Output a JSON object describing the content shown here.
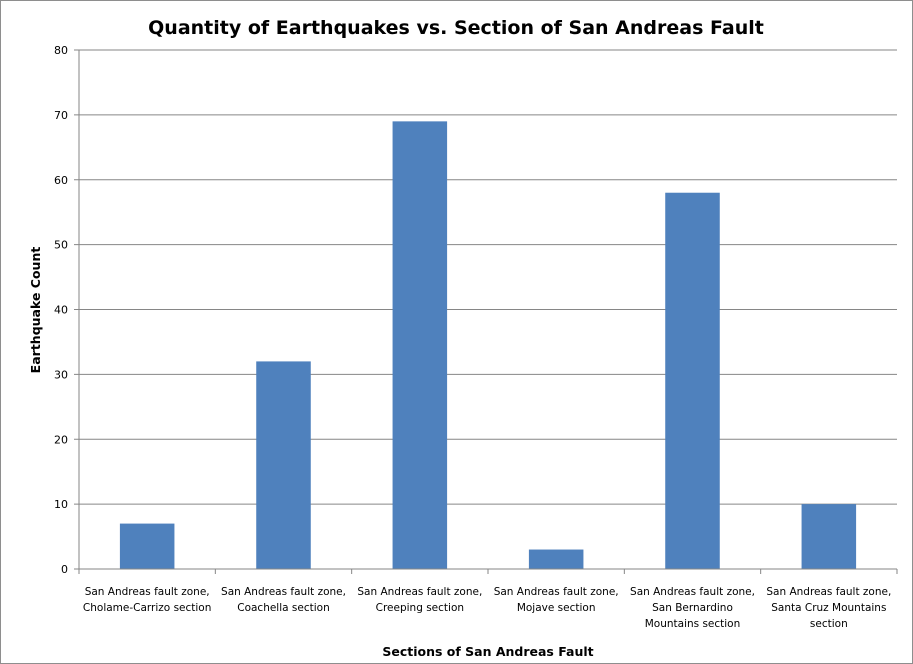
{
  "chart_data": {
    "type": "bar",
    "title": "Quantity of Earthquakes vs. Section of San Andreas Fault",
    "xlabel": "Sections of San Andreas Fault",
    "ylabel": "Earthquake Count",
    "ylim": [
      0,
      80
    ],
    "yticks": [
      "0",
      "10",
      "20",
      "30",
      "40",
      "50",
      "60",
      "70",
      "80"
    ],
    "grid": true,
    "legend": "none",
    "categories": [
      [
        "San Andreas fault zone,",
        "Cholame-Carrizo section"
      ],
      [
        "San Andreas fault zone,",
        "Coachella section"
      ],
      [
        "San Andreas fault zone,",
        "Creeping section"
      ],
      [
        "San Andreas fault zone,",
        "Mojave section"
      ],
      [
        "San Andreas fault zone,",
        "San Bernardino",
        "Mountains section"
      ],
      [
        "San Andreas fault zone,",
        "Santa Cruz Mountains",
        "section"
      ]
    ],
    "series": [
      {
        "name": "Earthquake Count",
        "values": [
          7,
          32,
          69,
          3,
          58,
          10
        ]
      }
    ],
    "colors": {
      "bar": "#4f81bd",
      "grid": "#868686",
      "axis": "#868686"
    }
  }
}
